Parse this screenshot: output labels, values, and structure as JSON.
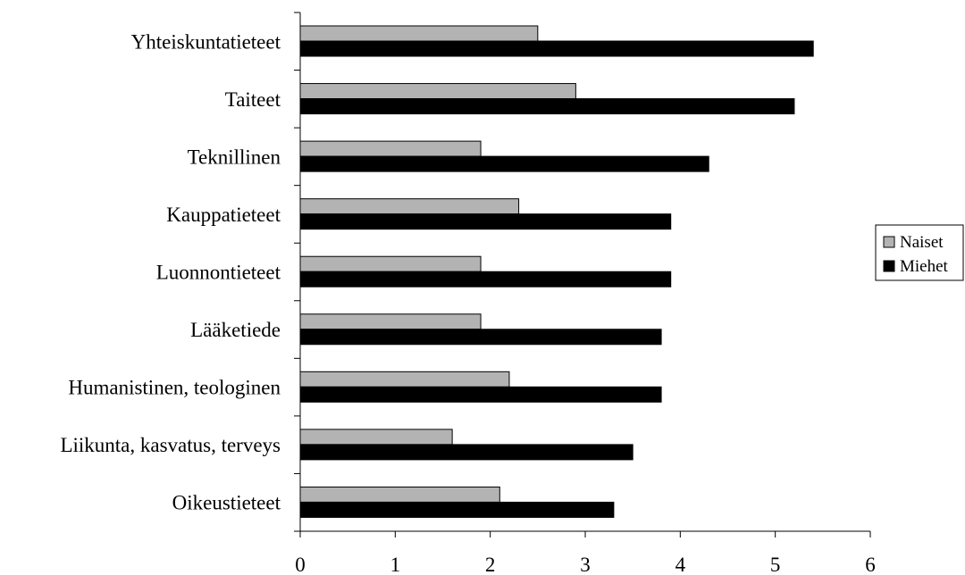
{
  "chart_data": {
    "type": "bar",
    "orientation": "horizontal",
    "categories": [
      "Yhteiskuntatieteet",
      "Taiteet",
      "Teknillinen",
      "Kauppatieteet",
      "Luonnontieteet",
      "Lääketiede",
      "Humanistinen, teologinen",
      "Liikunta, kasvatus, terveys",
      "Oikeustieteet"
    ],
    "series": [
      {
        "name": "Naiset",
        "color": "#b3b3b3",
        "values": [
          2.5,
          2.9,
          1.9,
          2.3,
          1.9,
          1.9,
          2.2,
          1.6,
          2.1
        ]
      },
      {
        "name": "Miehet",
        "color": "#000000",
        "values": [
          5.4,
          5.2,
          4.3,
          3.9,
          3.9,
          3.8,
          3.8,
          3.5,
          3.3
        ]
      }
    ],
    "x_ticks": [
      "0",
      "1",
      "2",
      "3",
      "4",
      "5",
      "6"
    ],
    "xlim": [
      0,
      6
    ],
    "title": "",
    "xlabel": "",
    "ylabel": "",
    "grid": false,
    "legend_position": "right"
  }
}
